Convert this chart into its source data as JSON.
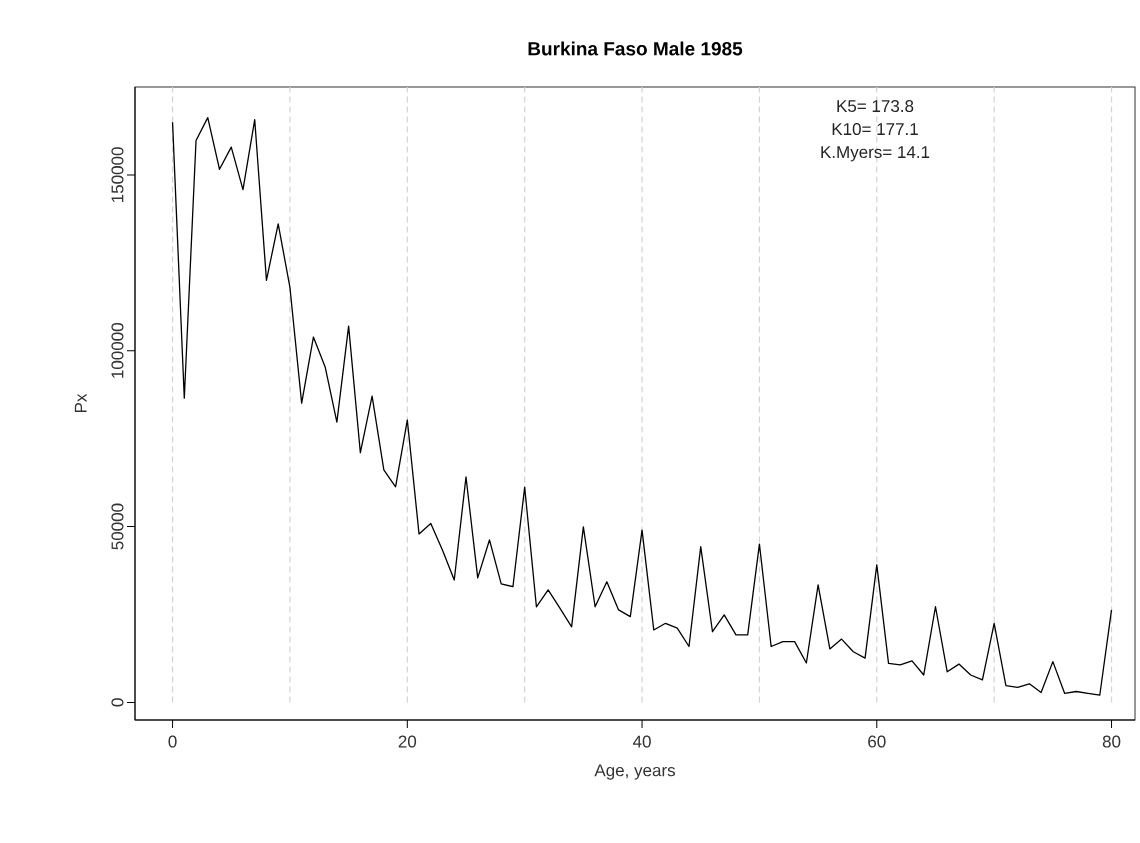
{
  "chart_data": {
    "type": "line",
    "title": "Burkina Faso Male 1985",
    "xlabel": "Age, years",
    "ylabel": "Px",
    "x": [
      0,
      1,
      2,
      3,
      4,
      5,
      6,
      7,
      8,
      9,
      10,
      11,
      12,
      13,
      14,
      15,
      16,
      17,
      18,
      19,
      20,
      21,
      22,
      23,
      24,
      25,
      26,
      27,
      28,
      29,
      30,
      31,
      32,
      33,
      34,
      35,
      36,
      37,
      38,
      39,
      40,
      41,
      42,
      43,
      44,
      45,
      46,
      47,
      48,
      49,
      50,
      51,
      52,
      53,
      54,
      55,
      56,
      57,
      58,
      59,
      60,
      61,
      62,
      63,
      64,
      65,
      66,
      67,
      68,
      69,
      70,
      71,
      72,
      73,
      74,
      75,
      76,
      77,
      78,
      79,
      80
    ],
    "series": [
      {
        "color": "#000000",
        "values": [
          165000,
          86500,
          159800,
          166300,
          151600,
          157900,
          145800,
          165700,
          120000,
          136100,
          118000,
          85100,
          103900,
          95400,
          79700,
          107000,
          71000,
          87100,
          66100,
          61300,
          80300,
          47900,
          50900,
          43300,
          34800,
          64100,
          35400,
          46200,
          33700,
          32900,
          61200,
          27200,
          32000,
          26800,
          21500,
          49900,
          27200,
          34300,
          26300,
          24400,
          49000,
          20600,
          22500,
          21100,
          15900,
          44300,
          20100,
          24900,
          19200,
          19200,
          45000,
          15900,
          17300,
          17300,
          11200,
          33400,
          15200,
          18000,
          14400,
          12600,
          39100,
          11100,
          10700,
          11800,
          7800,
          27200,
          8700,
          10900,
          7800,
          6400,
          22500,
          4800,
          4300,
          5300,
          2800,
          11600,
          2600,
          3100,
          2600,
          2100,
          26300
        ]
      }
    ],
    "xlim": [
      -3.2,
      82
    ],
    "ylim": [
      -5000,
      175000
    ],
    "xticks": [
      0,
      20,
      40,
      60,
      80
    ],
    "yticks": [
      0,
      50000,
      100000,
      150000
    ],
    "ref_lines": [
      {
        "axis": "x",
        "value": 0,
        "color": "#d3d3d3",
        "line_style": "dashed"
      },
      {
        "axis": "x",
        "value": 10,
        "color": "#d3d3d3",
        "line_style": "dashed"
      },
      {
        "axis": "x",
        "value": 20,
        "color": "#d3d3d3",
        "line_style": "dashed"
      },
      {
        "axis": "x",
        "value": 30,
        "color": "#d3d3d3",
        "line_style": "dashed"
      },
      {
        "axis": "x",
        "value": 40,
        "color": "#d3d3d3",
        "line_style": "dashed"
      },
      {
        "axis": "x",
        "value": 50,
        "color": "#d3d3d3",
        "line_style": "dashed"
      },
      {
        "axis": "x",
        "value": 60,
        "color": "#d3d3d3",
        "line_style": "dashed"
      },
      {
        "axis": "x",
        "value": 70,
        "color": "#d3d3d3",
        "line_style": "dashed"
      },
      {
        "axis": "x",
        "value": 80,
        "color": "#d3d3d3",
        "line_style": "dashed"
      }
    ],
    "annotations": [
      "K5= 173.8",
      "K10= 177.1",
      "K.Myers= 14.1"
    ],
    "grid": false,
    "marker": "none",
    "line_style": "solid"
  }
}
